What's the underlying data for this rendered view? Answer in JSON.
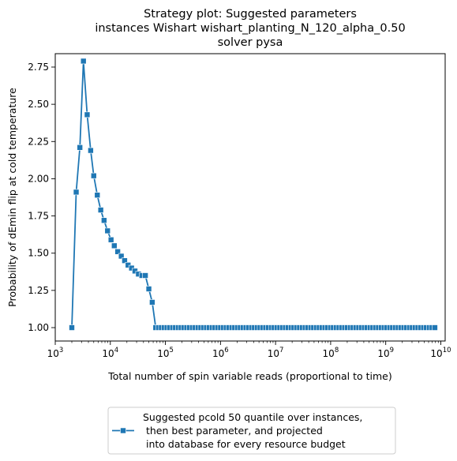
{
  "chart_data": {
    "type": "line",
    "title": [
      "Strategy plot: Suggested parameters",
      "instances Wishart wishart_planting_N_120_alpha_0.50",
      "solver pysa"
    ],
    "xlabel": "Total number of spin variable reads (proportional to time)",
    "ylabel": "Probability of dEmin flip at cold temperature",
    "xscale": "log",
    "xlim": [
      1000,
      12000000000
    ],
    "ylim": [
      0.91,
      2.84
    ],
    "x_tick_values": [
      1000,
      10000,
      100000,
      1000000,
      10000000,
      100000000,
      1000000000,
      10000000000
    ],
    "x_tick_labels": [
      {
        "base": "10",
        "exp": "3"
      },
      {
        "base": "10",
        "exp": "4"
      },
      {
        "base": "10",
        "exp": "5"
      },
      {
        "base": "10",
        "exp": "6"
      },
      {
        "base": "10",
        "exp": "7"
      },
      {
        "base": "10",
        "exp": "8"
      },
      {
        "base": "10",
        "exp": "9"
      },
      {
        "base": "10",
        "exp": "10"
      }
    ],
    "y_ticks": [
      1.0,
      1.25,
      1.5,
      1.75,
      2.0,
      2.25,
      2.5,
      2.75
    ],
    "y_tick_labels": [
      "1.00",
      "1.25",
      "1.50",
      "1.75",
      "2.00",
      "2.25",
      "2.50",
      "2.75"
    ],
    "grid": false,
    "legend_position": "bottom-center",
    "series": [
      {
        "name": "Suggested pcold 50 quantile over instances,\n then best parameter, and projected\ninto database for every resource budget",
        "legend_lines": [
          "Suggested pcold 50 quantile over instances,",
          " then best parameter, and projected",
          "into database for every resource budget"
        ],
        "color": "#1f77b4",
        "marker": "square",
        "x": [
          2000,
          2400,
          2800,
          3250,
          3800,
          4400,
          5000,
          5800,
          6700,
          7700,
          8900,
          10300,
          11800,
          13600,
          15800,
          18200,
          21000,
          24300,
          28000,
          32400,
          37400,
          43200,
          50000,
          57700,
          66700
        ],
        "y": [
          1.0,
          1.91,
          2.21,
          2.79,
          2.43,
          2.19,
          2.02,
          1.89,
          1.79,
          1.72,
          1.65,
          1.59,
          1.55,
          1.51,
          1.48,
          1.45,
          1.42,
          1.4,
          1.38,
          1.36,
          1.35,
          1.35,
          1.26,
          1.17,
          1.0
        ],
        "flat_tail": {
          "x_start": 66700,
          "x_end": 7800000000,
          "y": 1.0,
          "points": 100
        }
      }
    ]
  }
}
